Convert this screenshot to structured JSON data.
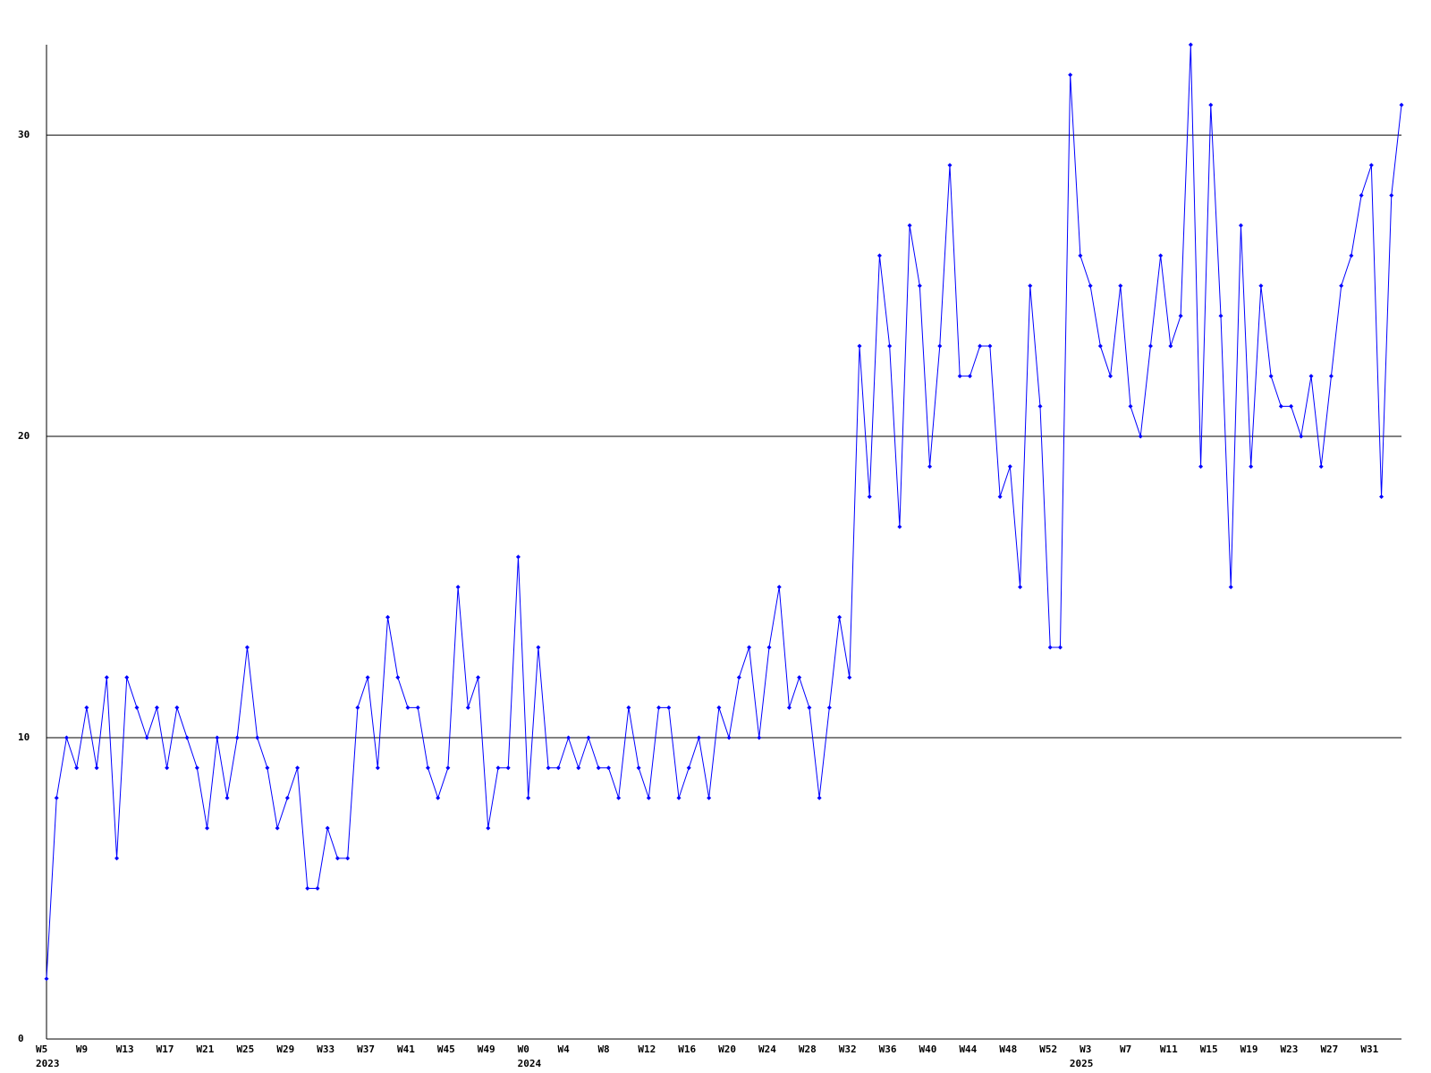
{
  "chart_data": {
    "type": "line",
    "categories": [
      "W5",
      null,
      null,
      null,
      "W9",
      null,
      null,
      null,
      "W13",
      null,
      null,
      null,
      "W17",
      null,
      null,
      null,
      "W21",
      null,
      null,
      null,
      "W25",
      null,
      null,
      null,
      "W29",
      null,
      null,
      null,
      "W33",
      null,
      null,
      null,
      "W37",
      null,
      null,
      null,
      "W41",
      null,
      null,
      null,
      "W45",
      null,
      null,
      null,
      "W49",
      null,
      null,
      null,
      "W0",
      null,
      null,
      null,
      "W4",
      null,
      null,
      null,
      "W8",
      null,
      null,
      null,
      "W12",
      null,
      null,
      null,
      "W16",
      null,
      null,
      null,
      "W20",
      null,
      null,
      null,
      "W24",
      null,
      null,
      null,
      "W28",
      null,
      null,
      null,
      "W32",
      null,
      null,
      null,
      "W36",
      null,
      null,
      null,
      "W40",
      null,
      null,
      null,
      "W44",
      null,
      null,
      null,
      "W48",
      null,
      null,
      null,
      "W52",
      null,
      null,
      null,
      "W3",
      null,
      null,
      null,
      "W7",
      null,
      null,
      null,
      "W11",
      null,
      null,
      null,
      "W15",
      null,
      null,
      null,
      "W19",
      null,
      null,
      null,
      "W23",
      null,
      null,
      null,
      "W27",
      null,
      null,
      null,
      "W31",
      null,
      null,
      null
    ],
    "year_categories": [
      "2023",
      null,
      null,
      null,
      null,
      null,
      null,
      null,
      null,
      null,
      null,
      null,
      null,
      null,
      null,
      null,
      null,
      null,
      null,
      null,
      null,
      null,
      null,
      null,
      null,
      null,
      null,
      null,
      null,
      null,
      null,
      null,
      null,
      null,
      null,
      null,
      null,
      null,
      null,
      null,
      null,
      null,
      null,
      null,
      null,
      null,
      null,
      null,
      "2024",
      null,
      null,
      null,
      null,
      null,
      null,
      null,
      null,
      null,
      null,
      null,
      null,
      null,
      null,
      null,
      null,
      null,
      null,
      null,
      null,
      null,
      null,
      null,
      null,
      null,
      null,
      null,
      null,
      null,
      null,
      null,
      null,
      null,
      null,
      null,
      null,
      null,
      null,
      null,
      null,
      null,
      null,
      null,
      null,
      null,
      null,
      null,
      null,
      null,
      null,
      null,
      null,
      null,
      null,
      "2025",
      null,
      null,
      null,
      null,
      null,
      null,
      null,
      null,
      null,
      null,
      null,
      null,
      null,
      null,
      null,
      null,
      null,
      null,
      null,
      null,
      null,
      null,
      null,
      null,
      null,
      null,
      null,
      null,
      null,
      null,
      null,
      null,
      null,
      null
    ],
    "values": [
      2,
      8,
      10,
      9,
      11,
      9,
      12,
      6,
      12,
      11,
      10,
      11,
      9,
      11,
      10,
      9,
      7,
      10,
      8,
      10,
      13,
      10,
      9,
      7,
      8,
      9,
      5,
      5,
      7,
      6,
      6,
      11,
      12,
      9,
      14,
      12,
      11,
      11,
      9,
      8,
      9,
      15,
      11,
      12,
      7,
      9,
      9,
      16,
      8,
      13,
      9,
      9,
      10,
      9,
      10,
      9,
      9,
      8,
      11,
      9,
      8,
      11,
      11,
      8,
      9,
      10,
      8,
      11,
      10,
      12,
      13,
      10,
      13,
      15,
      11,
      12,
      11,
      8,
      11,
      14,
      12,
      23,
      18,
      26,
      23,
      17,
      27,
      25,
      19,
      23,
      29,
      22,
      22,
      23,
      23,
      18,
      19,
      15,
      25,
      21,
      13,
      13,
      32,
      26,
      25,
      23,
      22,
      25,
      21,
      20,
      23,
      26,
      23,
      24,
      33,
      19,
      31,
      24,
      15,
      27,
      19,
      25,
      22,
      21,
      21,
      20,
      22,
      19,
      22,
      25,
      26,
      28,
      29,
      18,
      28,
      31
    ],
    "color": "#0000ff",
    "ylim": [
      0,
      33
    ],
    "yticks": [
      0,
      10,
      20,
      30
    ],
    "grid": true
  }
}
